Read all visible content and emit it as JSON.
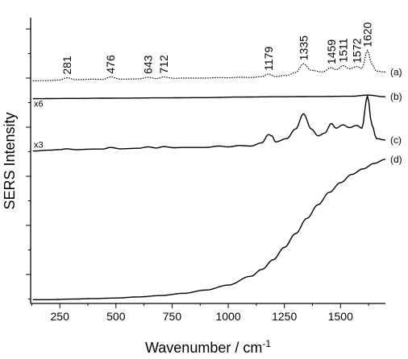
{
  "chart_data": {
    "type": "line",
    "title": "",
    "xlabel": "Wavenumber / cm",
    "xlabel_superscript": "-1",
    "ylabel": "SERS Intensity",
    "xlim": [
      120,
      1700
    ],
    "x_ticks": [
      250,
      500,
      750,
      1000,
      1250,
      1500
    ],
    "x_tick_labels": [
      "250",
      "500",
      "750",
      "1000",
      "1250",
      "1500"
    ],
    "y_ticks_labeled": false,
    "peak_labels": [
      {
        "x": 281,
        "text": "281"
      },
      {
        "x": 476,
        "text": "476"
      },
      {
        "x": 643,
        "text": "643"
      },
      {
        "x": 712,
        "text": "712"
      },
      {
        "x": 1179,
        "text": "1179"
      },
      {
        "x": 1335,
        "text": "1335"
      },
      {
        "x": 1459,
        "text": "1459"
      },
      {
        "x": 1511,
        "text": "1511"
      },
      {
        "x": 1572,
        "text": "1572"
      },
      {
        "x": 1620,
        "text": "1620"
      }
    ],
    "multipliers": [
      {
        "series": "b",
        "text": "x6"
      },
      {
        "series": "c",
        "text": "x3"
      }
    ],
    "series": [
      {
        "name": "(a)",
        "style": "dotted",
        "baseline": 0.8,
        "x": [
          130,
          200,
          250,
          281,
          320,
          400,
          440,
          476,
          520,
          600,
          643,
          680,
          712,
          760,
          800,
          900,
          960,
          1000,
          1050,
          1100,
          1150,
          1179,
          1210,
          1260,
          1300,
          1335,
          1370,
          1420,
          1459,
          1480,
          1511,
          1540,
          1572,
          1595,
          1620,
          1640,
          1660,
          1700
        ],
        "y": [
          0.8,
          0.801,
          0.803,
          0.811,
          0.804,
          0.806,
          0.805,
          0.814,
          0.806,
          0.807,
          0.813,
          0.808,
          0.814,
          0.809,
          0.81,
          0.81,
          0.812,
          0.811,
          0.813,
          0.812,
          0.815,
          0.825,
          0.815,
          0.82,
          0.83,
          0.862,
          0.838,
          0.832,
          0.848,
          0.84,
          0.855,
          0.844,
          0.852,
          0.845,
          0.91,
          0.86,
          0.835,
          0.832
        ]
      },
      {
        "name": "(b)",
        "style": "solid",
        "baseline": 0.735,
        "x": [
          130,
          300,
          500,
          700,
          900,
          1050,
          1200,
          1400,
          1550,
          1620,
          1700
        ],
        "y": [
          0.735,
          0.736,
          0.737,
          0.738,
          0.739,
          0.741,
          0.742,
          0.743,
          0.744,
          0.748,
          0.742
        ]
      },
      {
        "name": "(c)",
        "style": "solid",
        "baseline": 0.545,
        "x": [
          130,
          200,
          250,
          281,
          320,
          400,
          440,
          476,
          520,
          600,
          643,
          680,
          712,
          760,
          800,
          900,
          960,
          1000,
          1050,
          1100,
          1150,
          1179,
          1195,
          1210,
          1260,
          1300,
          1335,
          1370,
          1400,
          1430,
          1459,
          1480,
          1511,
          1540,
          1572,
          1595,
          1620,
          1640,
          1660,
          1700
        ],
        "y": [
          0.545,
          0.548,
          0.55,
          0.553,
          0.55,
          0.552,
          0.552,
          0.558,
          0.553,
          0.555,
          0.56,
          0.556,
          0.561,
          0.557,
          0.558,
          0.558,
          0.563,
          0.56,
          0.565,
          0.563,
          0.575,
          0.605,
          0.6,
          0.578,
          0.59,
          0.625,
          0.68,
          0.625,
          0.6,
          0.61,
          0.645,
          0.628,
          0.64,
          0.63,
          0.638,
          0.628,
          0.745,
          0.64,
          0.59,
          0.585
        ]
      },
      {
        "name": "(d)",
        "style": "solid",
        "baseline": 0.0,
        "x": [
          130,
          200,
          300,
          400,
          500,
          600,
          700,
          800,
          900,
          1000,
          1100,
          1150,
          1200,
          1250,
          1300,
          1350,
          1400,
          1450,
          1500,
          1550,
          1600,
          1650,
          1700
        ],
        "y": [
          0.005,
          0.005,
          0.007,
          0.009,
          0.011,
          0.015,
          0.02,
          0.028,
          0.04,
          0.058,
          0.09,
          0.115,
          0.15,
          0.195,
          0.245,
          0.3,
          0.35,
          0.395,
          0.43,
          0.46,
          0.48,
          0.5,
          0.515
        ]
      }
    ]
  }
}
